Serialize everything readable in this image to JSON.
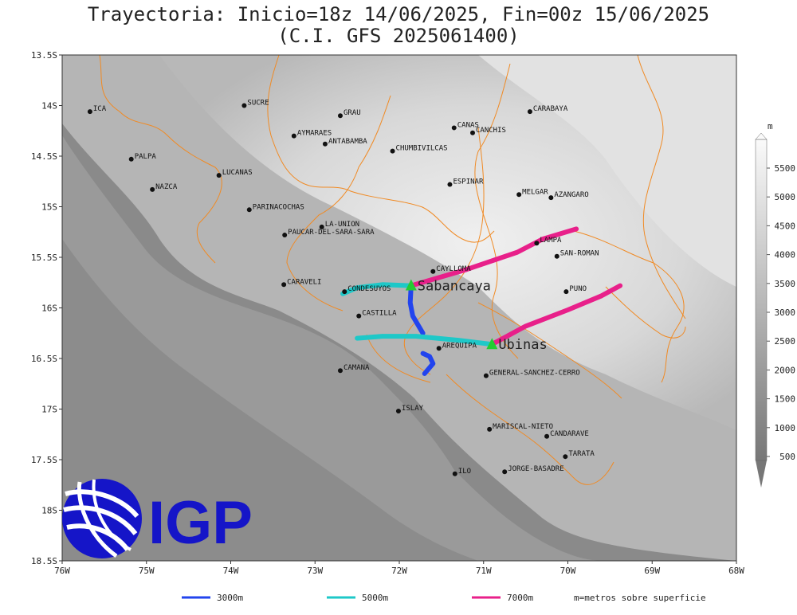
{
  "title_line1": "Trayectoria: Inicio=18z 14/06/2025, Fin=00z 15/06/2025",
  "title_line2": "(C.I. GFS 2025061400)",
  "map": {
    "lon_range": [
      -76,
      -68
    ],
    "lat_range": [
      -18.5,
      -13.5
    ],
    "x_ticks": [
      {
        "lon": -76,
        "label": "76W"
      },
      {
        "lon": -75,
        "label": "75W"
      },
      {
        "lon": -74,
        "label": "74W"
      },
      {
        "lon": -73,
        "label": "73W"
      },
      {
        "lon": -72,
        "label": "72W"
      },
      {
        "lon": -71,
        "label": "71W"
      },
      {
        "lon": -70,
        "label": "70W"
      },
      {
        "lon": -69,
        "label": "69W"
      },
      {
        "lon": -68,
        "label": "68W"
      }
    ],
    "y_ticks": [
      {
        "lat": -13.5,
        "label": "13.5S"
      },
      {
        "lat": -14,
        "label": "14S"
      },
      {
        "lat": -14.5,
        "label": "14.5S"
      },
      {
        "lat": -15,
        "label": "15S"
      },
      {
        "lat": -15.5,
        "label": "15.5S"
      },
      {
        "lat": -16,
        "label": "16S"
      },
      {
        "lat": -16.5,
        "label": "16.5S"
      },
      {
        "lat": -17,
        "label": "17S"
      },
      {
        "lat": -17.5,
        "label": "17.5S"
      },
      {
        "lat": -18,
        "label": "18S"
      },
      {
        "lat": -18.5,
        "label": "18.5S"
      }
    ],
    "border_color": "#f08a24",
    "cities": [
      {
        "name": "ICA",
        "lon": -75.67,
        "lat": -14.06
      },
      {
        "name": "SUCRE",
        "lon": -73.84,
        "lat": -14.0
      },
      {
        "name": "GRAU",
        "lon": -72.7,
        "lat": -14.1
      },
      {
        "name": "CARABAYA",
        "lon": -70.45,
        "lat": -14.06
      },
      {
        "name": "CANAS",
        "lon": -71.35,
        "lat": -14.22
      },
      {
        "name": "CANCHIS",
        "lon": -71.13,
        "lat": -14.27
      },
      {
        "name": "AYMARAES",
        "lon": -73.25,
        "lat": -14.3
      },
      {
        "name": "ANTABAMBA",
        "lon": -72.88,
        "lat": -14.38
      },
      {
        "name": "CHUMBIVILCAS",
        "lon": -72.08,
        "lat": -14.45
      },
      {
        "name": "PALPA",
        "lon": -75.18,
        "lat": -14.53
      },
      {
        "name": "LUCANAS",
        "lon": -74.14,
        "lat": -14.69
      },
      {
        "name": "ESPINAR",
        "lon": -71.4,
        "lat": -14.78
      },
      {
        "name": "NAZCA",
        "lon": -74.93,
        "lat": -14.83
      },
      {
        "name": "MELGAR",
        "lon": -70.58,
        "lat": -14.88
      },
      {
        "name": "AZANGARO",
        "lon": -70.2,
        "lat": -14.91
      },
      {
        "name": "PARINACOCHAS",
        "lon": -73.78,
        "lat": -15.03
      },
      {
        "name": "LA-UNION",
        "lon": -72.92,
        "lat": -15.2
      },
      {
        "name": "PAUCAR-DEL-SARA-SARA",
        "lon": -73.36,
        "lat": -15.28
      },
      {
        "name": "LAMPA",
        "lon": -70.37,
        "lat": -15.36
      },
      {
        "name": "SAN-ROMAN",
        "lon": -70.13,
        "lat": -15.49
      },
      {
        "name": "CAYLLOMA",
        "lon": -71.6,
        "lat": -15.64
      },
      {
        "name": "CARAVELI",
        "lon": -73.37,
        "lat": -15.77
      },
      {
        "name": "CONDESUYOS",
        "lon": -72.65,
        "lat": -15.84
      },
      {
        "name": "PUNO",
        "lon": -70.02,
        "lat": -15.84
      },
      {
        "name": "CASTILLA",
        "lon": -72.48,
        "lat": -16.08
      },
      {
        "name": "AREQUIPA",
        "lon": -71.53,
        "lat": -16.4
      },
      {
        "name": "GENERAL-SANCHEZ-CERRO",
        "lon": -70.97,
        "lat": -16.67
      },
      {
        "name": "CAMANA",
        "lon": -72.7,
        "lat": -16.62
      },
      {
        "name": "ISLAY",
        "lon": -72.01,
        "lat": -17.02
      },
      {
        "name": "MARISCAL-NIETO",
        "lon": -70.93,
        "lat": -17.2
      },
      {
        "name": "CANDARAVE",
        "lon": -70.25,
        "lat": -17.27
      },
      {
        "name": "TARATA",
        "lon": -70.03,
        "lat": -17.47
      },
      {
        "name": "ILO",
        "lon": -71.34,
        "lat": -17.64
      },
      {
        "name": "JORGE-BASADRE",
        "lon": -70.75,
        "lat": -17.62
      }
    ],
    "volcanoes": [
      {
        "name": "Sabancaya",
        "lon": -71.86,
        "lat": -15.78,
        "color": "#22cc33"
      },
      {
        "name": "Ubinas",
        "lon": -70.9,
        "lat": -16.36,
        "color": "#22cc33"
      }
    ],
    "trajectories": [
      {
        "level": "3000m",
        "color": "#2244ee",
        "paths": [
          [
            [
              -71.86,
              -15.78
            ],
            [
              -71.87,
              -15.95
            ],
            [
              -71.84,
              -16.08
            ],
            [
              -71.72,
              -16.25
            ]
          ],
          [
            [
              -71.72,
              -16.45
            ],
            [
              -71.64,
              -16.48
            ],
            [
              -71.6,
              -16.55
            ],
            [
              -71.7,
              -16.65
            ]
          ]
        ]
      },
      {
        "level": "5000m",
        "color": "#1ec8c8",
        "paths": [
          [
            [
              -71.86,
              -15.78
            ],
            [
              -72.2,
              -15.77
            ],
            [
              -72.5,
              -15.8
            ],
            [
              -72.67,
              -15.86
            ]
          ],
          [
            [
              -70.9,
              -16.36
            ],
            [
              -71.3,
              -16.32
            ],
            [
              -71.8,
              -16.28
            ],
            [
              -72.2,
              -16.28
            ],
            [
              -72.5,
              -16.3
            ]
          ]
        ]
      },
      {
        "level": "7000m",
        "color": "#e8208a",
        "paths": [
          [
            [
              -71.86,
              -15.78
            ],
            [
              -71.2,
              -15.62
            ],
            [
              -70.6,
              -15.45
            ],
            [
              -70.3,
              -15.32
            ],
            [
              -69.9,
              -15.22
            ]
          ],
          [
            [
              -70.9,
              -16.36
            ],
            [
              -70.5,
              -16.18
            ],
            [
              -70.0,
              -16.02
            ],
            [
              -69.6,
              -15.88
            ],
            [
              -69.38,
              -15.78
            ]
          ]
        ]
      }
    ]
  },
  "colorbar": {
    "unit": "m",
    "labels": [
      "500",
      "1000",
      "1500",
      "2000",
      "2500",
      "3000",
      "3500",
      "4000",
      "4500",
      "5000",
      "5500"
    ]
  },
  "legend": {
    "items": [
      {
        "label": "3000m",
        "color": "#2244ee"
      },
      {
        "label": "5000m",
        "color": "#1ec8c8"
      },
      {
        "label": "7000m",
        "color": "#e8208a"
      }
    ],
    "note": "m=metros sobre superficie"
  },
  "logo": {
    "text": "IGP",
    "color": "#1515c8"
  }
}
